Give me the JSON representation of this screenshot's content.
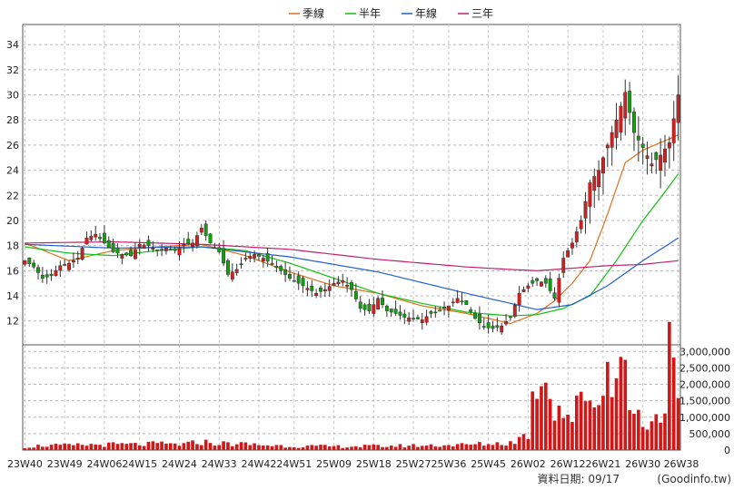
{
  "chart_data": {
    "type": "candlestick",
    "legend": [
      {
        "name": "季線",
        "color": "#e07020"
      },
      {
        "name": "半年",
        "color": "#10c010"
      },
      {
        "name": "年線",
        "color": "#2060d0"
      },
      {
        "name": "三年",
        "color": "#c02070"
      }
    ],
    "legend_placement": "top-center",
    "price_axis": {
      "ticks": [
        12,
        14,
        16,
        18,
        20,
        22,
        24,
        26,
        28,
        30,
        32,
        34
      ],
      "range": [
        10.1,
        35.6
      ]
    },
    "volume_axis": {
      "ticks": [
        0,
        500000,
        1000000,
        1500000,
        2000000,
        2500000,
        3000000
      ],
      "tick_labels": [
        "0",
        "500,000",
        "1,000,000",
        "1,500,000",
        "2,000,000",
        "2,500,000",
        "3,000,000"
      ],
      "range": [
        0,
        3000000
      ]
    },
    "x_labels": [
      "23W40",
      "23W49",
      "24W06",
      "24W15",
      "24W24",
      "24W33",
      "24W42",
      "24W51",
      "25W09",
      "25W18",
      "25W27",
      "25W36",
      "25W45",
      "26W02",
      "26W12",
      "26W21",
      "26W30",
      "26W38"
    ],
    "grid": true,
    "up_color": "#d02020",
    "down_color": "#10a010",
    "volume_color": "#d01818",
    "close_anchors": [
      [
        0,
        16.8
      ],
      [
        2,
        16.3
      ],
      [
        4,
        15.4
      ],
      [
        6,
        15.6
      ],
      [
        8,
        16.4
      ],
      [
        10,
        16.6
      ],
      [
        12,
        17.0
      ],
      [
        14,
        18.6
      ],
      [
        16,
        18.9
      ],
      [
        18,
        18.2
      ],
      [
        20,
        17.5
      ],
      [
        22,
        17.3
      ],
      [
        24,
        17.2
      ],
      [
        26,
        18.1
      ],
      [
        28,
        18.0
      ],
      [
        30,
        17.6
      ],
      [
        32,
        17.8
      ],
      [
        34,
        17.6
      ],
      [
        36,
        18.1
      ],
      [
        38,
        18.2
      ],
      [
        40,
        19.4
      ],
      [
        42,
        18.2
      ],
      [
        44,
        17.5
      ],
      [
        46,
        15.7
      ],
      [
        48,
        16.1
      ],
      [
        50,
        17.0
      ],
      [
        52,
        17.3
      ],
      [
        54,
        17.0
      ],
      [
        56,
        16.5
      ],
      [
        58,
        16.0
      ],
      [
        60,
        15.4
      ],
      [
        62,
        15.0
      ],
      [
        64,
        14.6
      ],
      [
        66,
        14.2
      ],
      [
        68,
        14.5
      ],
      [
        70,
        15.0
      ],
      [
        72,
        15.2
      ],
      [
        74,
        14.5
      ],
      [
        76,
        13.0
      ],
      [
        78,
        12.8
      ],
      [
        80,
        13.8
      ],
      [
        82,
        12.8
      ],
      [
        84,
        12.6
      ],
      [
        86,
        12.3
      ],
      [
        88,
        12.2
      ],
      [
        90,
        12.1
      ],
      [
        92,
        12.6
      ],
      [
        94,
        12.8
      ],
      [
        96,
        13.2
      ],
      [
        98,
        13.8
      ],
      [
        100,
        13.3
      ],
      [
        102,
        12.2
      ],
      [
        104,
        11.5
      ],
      [
        106,
        11.4
      ],
      [
        108,
        11.6
      ],
      [
        110,
        12.3
      ],
      [
        112,
        14.2
      ],
      [
        114,
        14.8
      ],
      [
        116,
        15.2
      ],
      [
        118,
        15.0
      ],
      [
        120,
        13.8
      ],
      [
        122,
        17.0
      ],
      [
        124,
        18.2
      ],
      [
        126,
        20.0
      ],
      [
        128,
        23.0
      ],
      [
        130,
        24.0
      ],
      [
        132,
        26.0
      ],
      [
        134,
        28.0
      ],
      [
        136,
        30.2
      ],
      [
        138,
        27.0
      ],
      [
        140,
        25.8
      ],
      [
        142,
        24.5
      ],
      [
        144,
        25.2
      ],
      [
        146,
        26.2
      ],
      [
        148,
        30.0
      ]
    ],
    "volume_anchors": [
      [
        0,
        90000
      ],
      [
        4,
        140000
      ],
      [
        10,
        140000
      ],
      [
        14,
        160000
      ],
      [
        20,
        170000
      ],
      [
        26,
        170000
      ],
      [
        30,
        190000
      ],
      [
        36,
        170000
      ],
      [
        40,
        250000
      ],
      [
        44,
        200000
      ],
      [
        50,
        180000
      ],
      [
        60,
        120000
      ],
      [
        70,
        110000
      ],
      [
        80,
        120000
      ],
      [
        90,
        140000
      ],
      [
        100,
        160000
      ],
      [
        110,
        220000
      ],
      [
        114,
        500000
      ],
      [
        116,
        2300000
      ],
      [
        118,
        2400000
      ],
      [
        120,
        1400000
      ],
      [
        124,
        1000000
      ],
      [
        128,
        1900000
      ],
      [
        130,
        1300000
      ],
      [
        132,
        2500000
      ],
      [
        134,
        3000000
      ],
      [
        136,
        2200000
      ],
      [
        138,
        1100000
      ],
      [
        140,
        900000
      ],
      [
        144,
        1000000
      ],
      [
        146,
        2900000
      ],
      [
        148,
        1200000
      ]
    ],
    "ma_anchors": {
      "季線": [
        [
          0,
          18.2
        ],
        [
          10,
          16.8
        ],
        [
          20,
          17.6
        ],
        [
          30,
          17.9
        ],
        [
          40,
          18.1
        ],
        [
          50,
          17.2
        ],
        [
          60,
          15.9
        ],
        [
          70,
          14.8
        ],
        [
          80,
          14.2
        ],
        [
          90,
          13.2
        ],
        [
          100,
          12.6
        ],
        [
          110,
          11.8
        ],
        [
          116,
          12.6
        ],
        [
          120,
          13.6
        ],
        [
          124,
          15.0
        ],
        [
          128,
          16.8
        ],
        [
          132,
          20.5
        ],
        [
          136,
          24.6
        ],
        [
          140,
          25.6
        ],
        [
          144,
          26.2
        ],
        [
          148,
          26.8
        ]
      ],
      "半年": [
        [
          0,
          17.9
        ],
        [
          10,
          17.4
        ],
        [
          20,
          17.2
        ],
        [
          30,
          17.6
        ],
        [
          40,
          17.9
        ],
        [
          50,
          17.6
        ],
        [
          60,
          16.6
        ],
        [
          70,
          15.4
        ],
        [
          80,
          14.2
        ],
        [
          90,
          13.4
        ],
        [
          100,
          12.7
        ],
        [
          110,
          12.4
        ],
        [
          116,
          12.5
        ],
        [
          122,
          13.0
        ],
        [
          128,
          14.0
        ],
        [
          134,
          16.8
        ],
        [
          140,
          20.0
        ],
        [
          144,
          21.8
        ],
        [
          148,
          23.7
        ]
      ],
      "年線": [
        [
          0,
          18.1
        ],
        [
          20,
          17.8
        ],
        [
          40,
          17.9
        ],
        [
          60,
          17.1
        ],
        [
          80,
          15.9
        ],
        [
          100,
          14.2
        ],
        [
          110,
          13.4
        ],
        [
          116,
          12.9
        ],
        [
          124,
          13.3
        ],
        [
          132,
          14.8
        ],
        [
          140,
          16.8
        ],
        [
          148,
          18.6
        ]
      ],
      "三年": [
        [
          0,
          18.2
        ],
        [
          20,
          18.3
        ],
        [
          40,
          18.1
        ],
        [
          60,
          17.7
        ],
        [
          80,
          16.9
        ],
        [
          100,
          16.3
        ],
        [
          110,
          16.1
        ],
        [
          116,
          16.0
        ],
        [
          124,
          16.2
        ],
        [
          132,
          16.4
        ],
        [
          140,
          16.5
        ],
        [
          148,
          16.8
        ]
      ]
    }
  },
  "footer": {
    "date_text": "資料日期: 09/17",
    "source_text": "(Goodinfo.tw)"
  }
}
